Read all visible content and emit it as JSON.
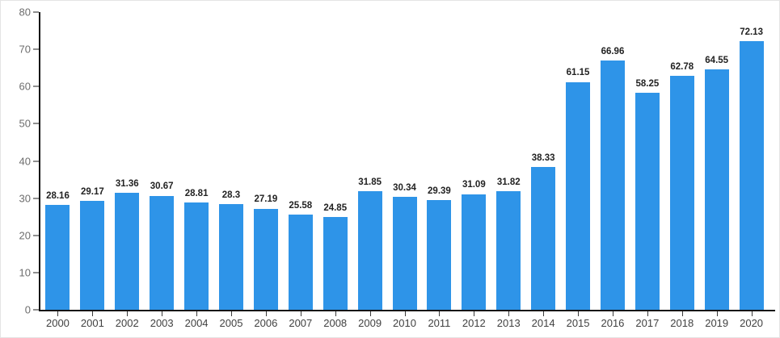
{
  "chart_data": {
    "type": "bar",
    "title": "",
    "xlabel": "",
    "ylabel": "",
    "categories": [
      "2000",
      "2001",
      "2002",
      "2003",
      "2004",
      "2005",
      "2006",
      "2007",
      "2008",
      "2009",
      "2010",
      "2011",
      "2012",
      "2013",
      "2014",
      "2015",
      "2016",
      "2017",
      "2018",
      "2019",
      "2020"
    ],
    "values": [
      28.16,
      29.17,
      31.36,
      30.67,
      28.81,
      28.3,
      27.19,
      25.58,
      24.85,
      31.85,
      30.34,
      29.39,
      31.09,
      31.82,
      38.33,
      61.15,
      66.96,
      58.25,
      62.78,
      64.55,
      72.13
    ],
    "ylim": [
      0,
      80
    ],
    "y_ticks": [
      0,
      10,
      20,
      30,
      40,
      50,
      60,
      70,
      80
    ],
    "grid": false,
    "legend": "none",
    "data_labels": true
  },
  "colors": {
    "bar": "#2E94E8",
    "axis_line": "#141414",
    "y_tick_mark": "#8f8f8f",
    "x_tick_mark": "#3a3a3a",
    "y_label_text": "#6d6d6d",
    "x_label_text": "#414141",
    "value_label_text": "#222222",
    "background": "#ffffff",
    "card_border": "#e4e4e4"
  }
}
